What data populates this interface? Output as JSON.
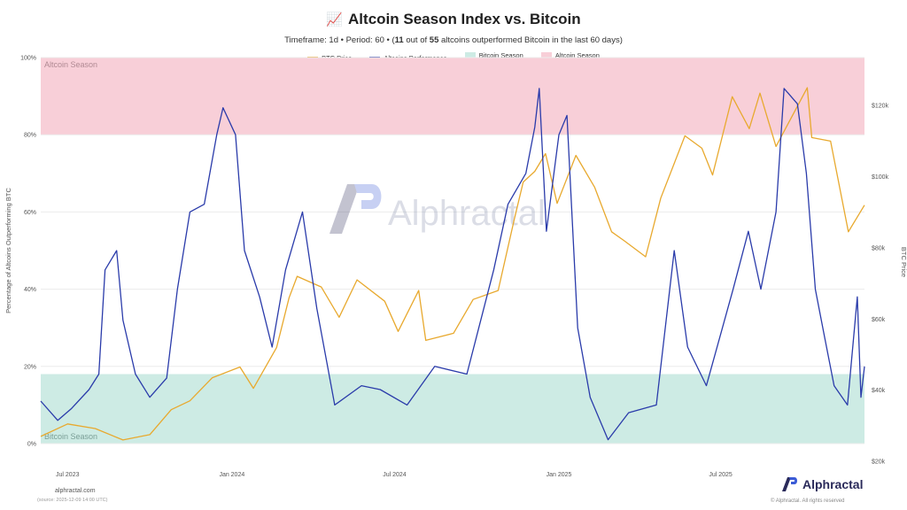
{
  "header": {
    "emoji": "📈",
    "title": "Altcoin Season Index vs. Bitcoin",
    "subtitle_pre": "Timeframe: 1d  •  Period: 60  •  (",
    "subtitle_count": "11",
    "subtitle_mid": " out of ",
    "subtitle_total": "55",
    "subtitle_post": " altcoins outperformed Bitcoin in the last 60 days)"
  },
  "watermark": "Alphractal",
  "footer": {
    "site": "alphractal.com",
    "source": "(source: 2025-12-09 14:00 UTC)",
    "brand": "Alphractal",
    "rights": "© Alphractal. All rights reserved"
  },
  "colors": {
    "btc": "#E8A92E",
    "alt": "#2A3BAA",
    "btc_season": "#CDEBE4",
    "alt_season": "#F8CFD8",
    "grid": "#ececec"
  },
  "chart_data": {
    "type": "line",
    "legend": [
      "BTC Price",
      "Altcoins Performance",
      "Bitcoin Season",
      "Altcoin Season"
    ],
    "legend_position": "top-center",
    "xlabel": "",
    "ylabel": "Percentage of Altcoins Outperforming BTC",
    "y2label": "BTC Price",
    "x_ticks": [
      "Jul 2023",
      "Jan 2024",
      "Jul 2024",
      "Jan 2025",
      "Jul 2025"
    ],
    "x_range": [
      "2023-06-01",
      "2025-12-09"
    ],
    "y_ticks": [
      "0%",
      "20%",
      "40%",
      "60%",
      "80%",
      "100%"
    ],
    "y_range": [
      0,
      100
    ],
    "y2_ticks": [
      "$20k",
      "$40k",
      "$60k",
      "$80k",
      "$100k",
      "$120k"
    ],
    "y2_range": [
      20000,
      132000
    ],
    "grid": true,
    "bands": [
      {
        "name": "Bitcoin Season",
        "y_range": [
          0,
          18
        ],
        "label": "Bitcoin Season"
      },
      {
        "name": "Altcoin Season",
        "y_range": [
          80,
          100
        ],
        "label": "Altcoin Season"
      }
    ],
    "series": [
      {
        "name": "BTC Price",
        "axis": "right",
        "points": [
          [
            "2023-06-01",
            27000
          ],
          [
            "2023-07-01",
            30500
          ],
          [
            "2023-08-01",
            29200
          ],
          [
            "2023-09-01",
            26000
          ],
          [
            "2023-10-01",
            27500
          ],
          [
            "2023-10-25",
            34500
          ],
          [
            "2023-11-15",
            37000
          ],
          [
            "2023-12-10",
            43500
          ],
          [
            "2024-01-10",
            46500
          ],
          [
            "2024-01-25",
            40500
          ],
          [
            "2024-02-20",
            52000
          ],
          [
            "2024-03-05",
            66000
          ],
          [
            "2024-03-14",
            72000
          ],
          [
            "2024-04-10",
            69000
          ],
          [
            "2024-04-30",
            60500
          ],
          [
            "2024-05-20",
            71000
          ],
          [
            "2024-06-20",
            65000
          ],
          [
            "2024-07-05",
            56500
          ],
          [
            "2024-07-28",
            68000
          ],
          [
            "2024-08-05",
            54000
          ],
          [
            "2024-09-05",
            56000
          ],
          [
            "2024-09-27",
            65500
          ],
          [
            "2024-10-25",
            68000
          ],
          [
            "2024-11-12",
            88000
          ],
          [
            "2024-11-22",
            98500
          ],
          [
            "2024-12-05",
            101500
          ],
          [
            "2024-12-17",
            106500
          ],
          [
            "2024-12-30",
            92500
          ],
          [
            "2025-01-20",
            106000
          ],
          [
            "2025-02-10",
            97000
          ],
          [
            "2025-03-01",
            84500
          ],
          [
            "2025-03-15",
            82000
          ],
          [
            "2025-04-08",
            77500
          ],
          [
            "2025-04-25",
            94000
          ],
          [
            "2025-05-22",
            111500
          ],
          [
            "2025-06-10",
            108000
          ],
          [
            "2025-06-22",
            100500
          ],
          [
            "2025-07-14",
            122500
          ],
          [
            "2025-08-02",
            113500
          ],
          [
            "2025-08-14",
            123500
          ],
          [
            "2025-09-01",
            108500
          ],
          [
            "2025-10-06",
            125000
          ],
          [
            "2025-10-11",
            111000
          ],
          [
            "2025-11-01",
            110000
          ],
          [
            "2025-11-21",
            84500
          ],
          [
            "2025-12-09",
            92000
          ]
        ]
      },
      {
        "name": "Altcoins Performance",
        "axis": "left",
        "points": [
          [
            "2023-06-01",
            11
          ],
          [
            "2023-06-20",
            6
          ],
          [
            "2023-07-05",
            9
          ],
          [
            "2023-07-25",
            14
          ],
          [
            "2023-08-05",
            18
          ],
          [
            "2023-08-12",
            45
          ],
          [
            "2023-08-25",
            50
          ],
          [
            "2023-09-01",
            32
          ],
          [
            "2023-09-15",
            18
          ],
          [
            "2023-10-01",
            12
          ],
          [
            "2023-10-20",
            17
          ],
          [
            "2023-11-01",
            40
          ],
          [
            "2023-11-15",
            60
          ],
          [
            "2023-12-01",
            62
          ],
          [
            "2023-12-15",
            80
          ],
          [
            "2023-12-22",
            87
          ],
          [
            "2024-01-05",
            80
          ],
          [
            "2024-01-15",
            50
          ],
          [
            "2024-02-01",
            38
          ],
          [
            "2024-02-15",
            25
          ],
          [
            "2024-03-01",
            45
          ],
          [
            "2024-03-20",
            60
          ],
          [
            "2024-04-05",
            35
          ],
          [
            "2024-04-25",
            10
          ],
          [
            "2024-05-25",
            15
          ],
          [
            "2024-06-15",
            14
          ],
          [
            "2024-07-15",
            10
          ],
          [
            "2024-08-15",
            20
          ],
          [
            "2024-09-20",
            18
          ],
          [
            "2024-10-20",
            45
          ],
          [
            "2024-11-05",
            62
          ],
          [
            "2024-11-25",
            70
          ],
          [
            "2024-12-05",
            82
          ],
          [
            "2024-12-10",
            92
          ],
          [
            "2024-12-18",
            55
          ],
          [
            "2025-01-01",
            80
          ],
          [
            "2025-01-10",
            85
          ],
          [
            "2025-01-22",
            30
          ],
          [
            "2025-02-05",
            12
          ],
          [
            "2025-02-25",
            1
          ],
          [
            "2025-03-20",
            8
          ],
          [
            "2025-04-20",
            10
          ],
          [
            "2025-05-10",
            50
          ],
          [
            "2025-05-25",
            25
          ],
          [
            "2025-06-15",
            15
          ],
          [
            "2025-07-15",
            40
          ],
          [
            "2025-08-01",
            55
          ],
          [
            "2025-08-15",
            40
          ],
          [
            "2025-09-01",
            60
          ],
          [
            "2025-09-10",
            92
          ],
          [
            "2025-09-25",
            88
          ],
          [
            "2025-10-05",
            70
          ],
          [
            "2025-10-15",
            40
          ],
          [
            "2025-10-25",
            28
          ],
          [
            "2025-11-05",
            15
          ],
          [
            "2025-11-20",
            10
          ],
          [
            "2025-12-01",
            38
          ],
          [
            "2025-12-05",
            12
          ],
          [
            "2025-12-09",
            20
          ]
        ]
      }
    ]
  }
}
